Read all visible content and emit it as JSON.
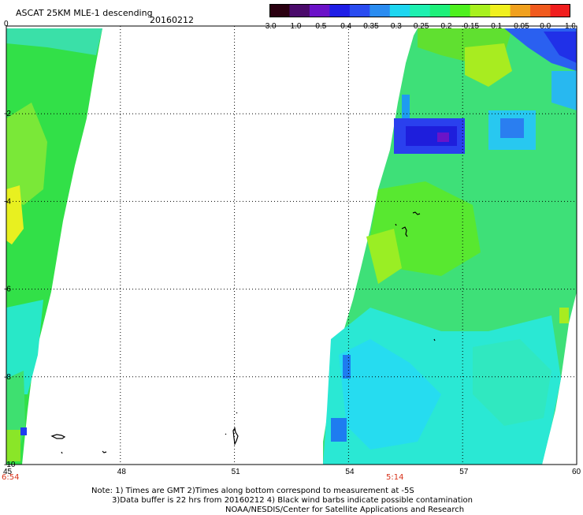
{
  "header": {
    "title": "ASCAT 25KM MLE-1 descending",
    "date": "20160212"
  },
  "colorbar": {
    "tick_labels": [
      "-3.0",
      "-1.0",
      "-0.5",
      "-0.4",
      "-0.35",
      "-0.3",
      "-0.25",
      "-0.2",
      "-0.15",
      "-0.1",
      "-0.05",
      "0.0",
      "1.0"
    ],
    "colors": [
      "#2a0010",
      "#4a0a6a",
      "#6b12c8",
      "#1f1ee6",
      "#2a4cf0",
      "#2a8cf0",
      "#1ed6f0",
      "#1ef0b0",
      "#1ef07a",
      "#4ef01e",
      "#a8f01e",
      "#f0f01e",
      "#f0a01e",
      "#f05a1e",
      "#f01e1e"
    ]
  },
  "axes": {
    "x_ticks": [
      "45",
      "48",
      "51",
      "54",
      "57",
      "60"
    ],
    "y_ticks": [
      "0",
      "-2",
      "-4",
      "-6",
      "-8",
      "-10"
    ],
    "xlim": [
      45,
      60
    ],
    "ylim": [
      -10,
      0
    ],
    "grid": true
  },
  "times": {
    "left": "6:54",
    "right": "5:14"
  },
  "notes": {
    "line1": "Note: 1) Times are GMT 2)Times along bottom correspond to measurement at -5S",
    "line2": "3)Data buffer is 22 hrs from 20160212 4) Black wind barbs indicate possible contamination",
    "line3": "NOAA/NESDIS/Center for Satellite Applications and Research"
  }
}
